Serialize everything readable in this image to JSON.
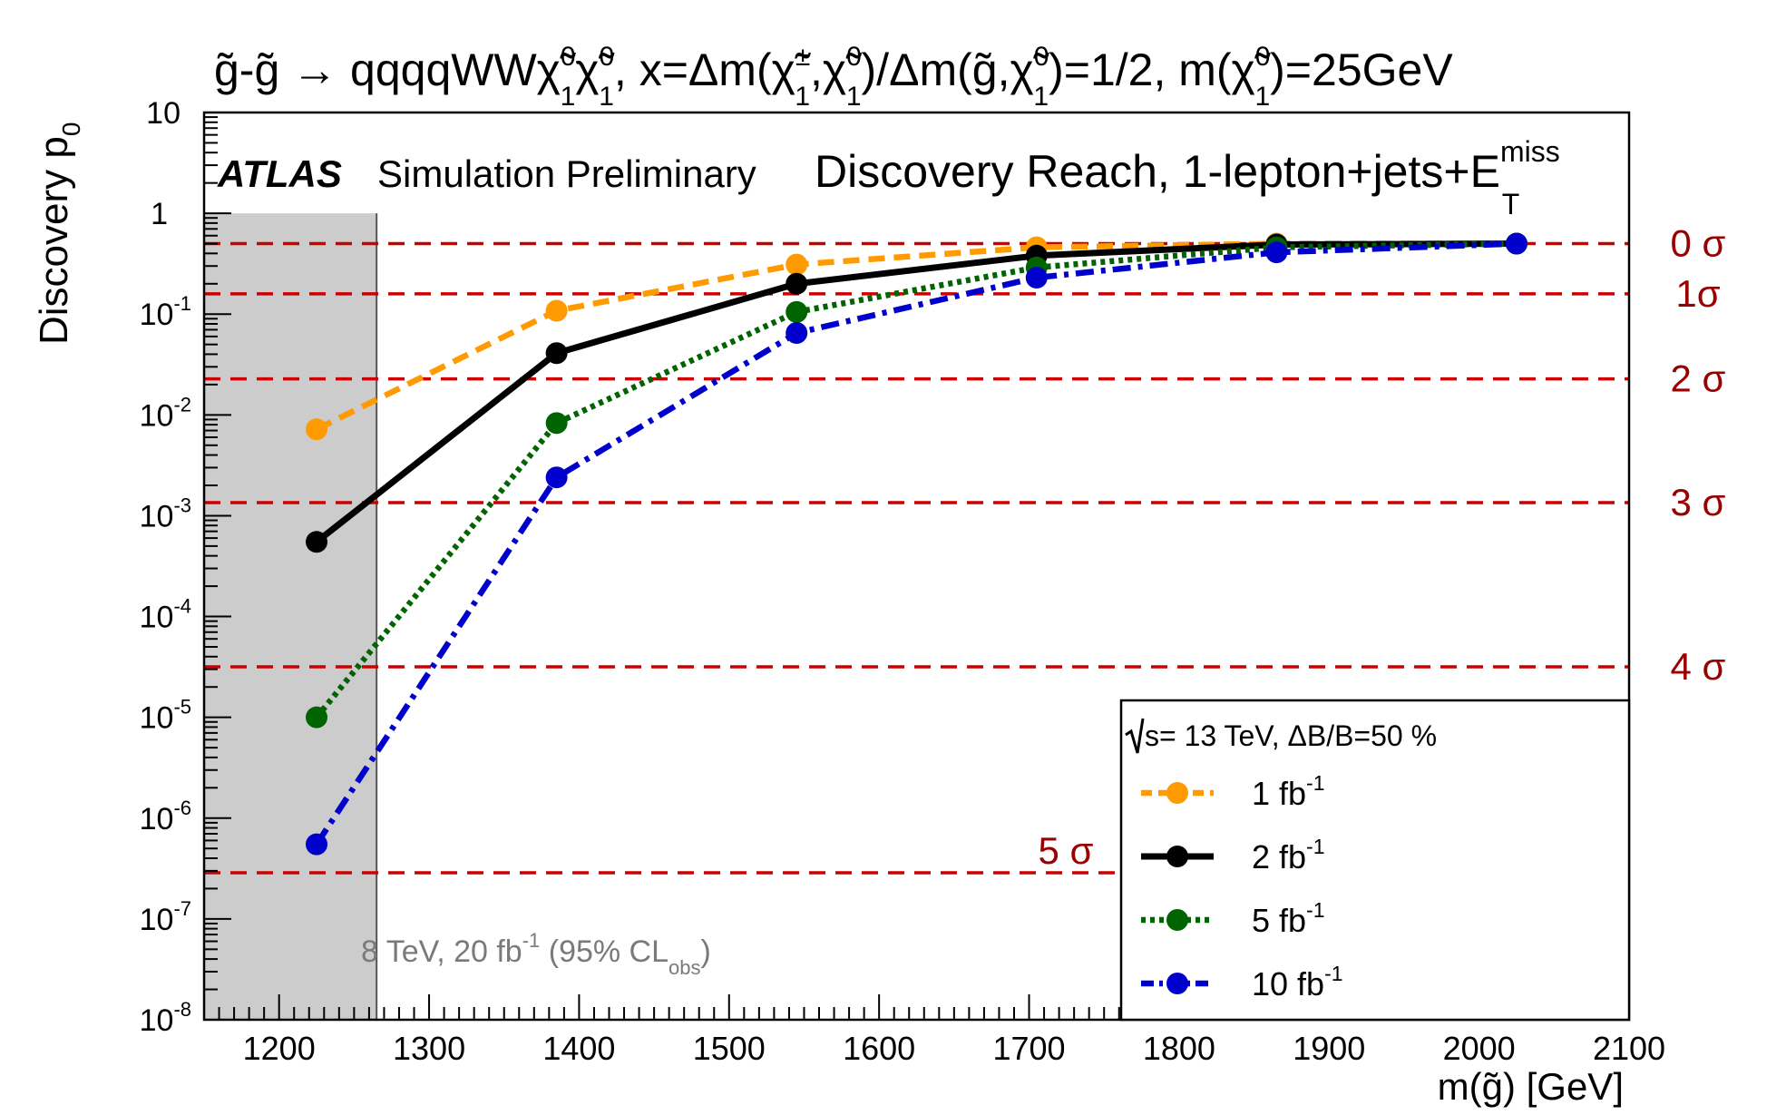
{
  "chart_data": {
    "type": "line",
    "title": {
      "text_parts": [
        "g̃-g̃ → qqqqWWχ̃",
        "0",
        "1",
        "χ̃",
        "0",
        "1",
        ", x=Δm(χ̃",
        "±",
        "1",
        ",χ̃",
        "0",
        "1",
        ")/Δm(g̃,χ̃",
        "0",
        "1",
        ")=1/2, m(χ̃",
        "0",
        "1",
        ")=25GeV"
      ]
    },
    "brand": "ATLAS",
    "label": "Simulation Preliminary",
    "subtitle": {
      "main": "Discovery Reach, 1-lepton+jets+E",
      "sup": "miss",
      "sub": "T"
    },
    "xlabel": "m(g̃) [GeV]",
    "ylabel": {
      "main": "Discovery p",
      "sub": "0"
    },
    "xlim": [
      1150,
      2100
    ],
    "ylim": [
      1e-08,
      10
    ],
    "yscale": "log",
    "xticks": [
      "1200",
      "1300",
      "1400",
      "1500",
      "1600",
      "1700",
      "1800",
      "1900",
      "2000",
      "2100"
    ],
    "yticks": [
      {
        "base": "10",
        "exp": "-8",
        "value": 1e-08
      },
      {
        "base": "10",
        "exp": "-7",
        "value": 1e-07
      },
      {
        "base": "10",
        "exp": "-6",
        "value": 1e-06
      },
      {
        "base": "10",
        "exp": "-5",
        "value": 1e-05
      },
      {
        "base": "10",
        "exp": "-4",
        "value": 0.0001
      },
      {
        "base": "10",
        "exp": "-3",
        "value": 0.001
      },
      {
        "base": "10",
        "exp": "-2",
        "value": 0.01
      },
      {
        "base": "10",
        "exp": "-1",
        "value": 0.1
      },
      {
        "base": "1",
        "exp": "",
        "value": 1
      },
      {
        "base": "10",
        "exp": "",
        "value": 10
      }
    ],
    "excluded_region": {
      "x_range": [
        1150,
        1265
      ],
      "y_max": 1,
      "label": {
        "pre": "8 TeV, 20 fb",
        "sup": "-1",
        "mid": " (95% CL",
        "sub": "obs",
        "post": ")"
      }
    },
    "sigma_lines": [
      {
        "label": "0 σ",
        "p0": 0.5
      },
      {
        "label": "1σ",
        "p0": 0.159
      },
      {
        "label": "2 σ",
        "p0": 0.0228
      },
      {
        "label": "3 σ",
        "p0": 0.00135
      },
      {
        "label": "4 σ",
        "p0": 3.17e-05
      },
      {
        "label": "5 σ",
        "p0": 2.87e-07
      }
    ],
    "x": [
      1225,
      1385,
      1545,
      1705,
      1865,
      2025
    ],
    "series": [
      {
        "name_pre": "1 fb",
        "name_sup": "-1",
        "color": "#ff9a00",
        "dash": "dashed",
        "values": [
          0.0072,
          0.108,
          0.31,
          0.46,
          0.5,
          0.5
        ]
      },
      {
        "name_pre": "2 fb",
        "name_sup": "-1",
        "color": "#000000",
        "dash": "solid",
        "values": [
          0.00055,
          0.041,
          0.2,
          0.38,
          0.49,
          0.5
        ]
      },
      {
        "name_pre": "5 fb",
        "name_sup": "-1",
        "color": "#006400",
        "dash": "dotted",
        "values": [
          1e-05,
          0.0083,
          0.105,
          0.29,
          0.46,
          0.5
        ]
      },
      {
        "name_pre": "10 fb",
        "name_sup": "-1",
        "color": "#0000cc",
        "dash": "dashdot",
        "values": [
          5.5e-07,
          0.0024,
          0.065,
          0.23,
          0.41,
          0.5
        ]
      }
    ],
    "legend": {
      "placement": "bottom-right",
      "header": "s= 13 TeV, ΔB/B=50 %"
    },
    "colors": {
      "sigma": "#cc0000",
      "sigma_text": "#9b0000",
      "excluded": "#cccccc"
    }
  }
}
